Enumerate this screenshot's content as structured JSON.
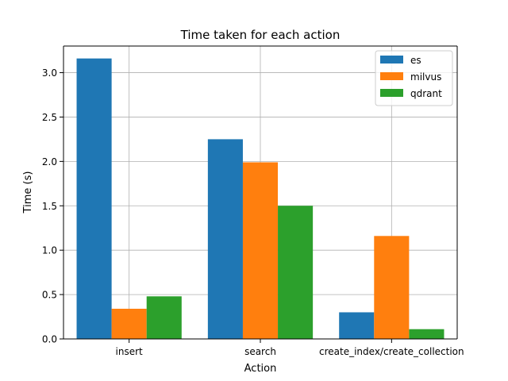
{
  "chart_data": {
    "type": "bar",
    "title": "Time taken for each action",
    "xlabel": "Action",
    "ylabel": "Time (s)",
    "categories": [
      "insert",
      "search",
      "create_index/create_collection"
    ],
    "series": [
      {
        "name": "es",
        "color": "#1f77b4",
        "values": [
          3.16,
          2.25,
          0.3
        ]
      },
      {
        "name": "milvus",
        "color": "#ff7f0e",
        "values": [
          0.34,
          1.99,
          1.16
        ]
      },
      {
        "name": "qdrant",
        "color": "#2ca02c",
        "values": [
          0.48,
          1.5,
          0.11
        ]
      }
    ],
    "ylim": [
      0,
      3.3
    ],
    "yticks": [
      0.0,
      0.5,
      1.0,
      1.5,
      2.0,
      2.5,
      3.0
    ],
    "ytick_labels": [
      "0.0",
      "0.5",
      "1.0",
      "1.5",
      "2.0",
      "2.5",
      "3.0"
    ],
    "grid": true,
    "legend_position": "top-right"
  }
}
